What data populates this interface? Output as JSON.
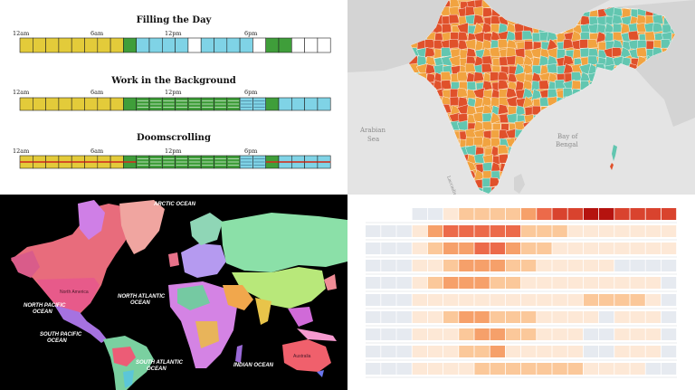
{
  "colors": {
    "yellow": "#e3cb3a",
    "green": "#3f9e3a",
    "cyan": "#7fd3e6",
    "white": "#ffffff",
    "map_orange": "#f1a340",
    "map_red": "#e0512b",
    "map_teal": "#62c6b0",
    "heat_low": "#e6eaf0",
    "heat_high": "#b5130f"
  },
  "chart_data": [
    {
      "type": "table",
      "title": "Filling the Day",
      "time_labels": [
        "12am",
        "6am",
        "12pm",
        "6pm"
      ],
      "cells": [
        "Y",
        "Y",
        "Y",
        "Y",
        "Y",
        "Y",
        "Y",
        "Y",
        "G",
        "C",
        "C",
        "C",
        "C",
        "W",
        "C",
        "C",
        "C",
        "C",
        "W",
        "G",
        "G",
        "W",
        "W",
        "W"
      ]
    },
    {
      "type": "table",
      "title": "Work in the Background",
      "time_labels": [
        "12am",
        "6am",
        "12pm",
        "6pm"
      ],
      "cells": [
        "Y",
        "Y",
        "Y",
        "Y",
        "Y",
        "Y",
        "Y",
        "Y",
        "G",
        "GS",
        "GS",
        "GS",
        "GS",
        "GS",
        "GS",
        "GS",
        "GS",
        "CS",
        "CS",
        "G",
        "C",
        "C",
        "C",
        "C"
      ]
    },
    {
      "type": "table",
      "title": "Doomscrolling",
      "time_labels": [
        "12am",
        "6am",
        "12pm",
        "6pm"
      ],
      "cells": [
        "YR",
        "YR",
        "YR",
        "YR",
        "YR",
        "YR",
        "YR",
        "YR",
        "GR",
        "GS",
        "GS",
        "GS",
        "GS",
        "GS",
        "GS",
        "GS",
        "GS",
        "CS",
        "CS",
        "GR",
        "CR",
        "CR",
        "CR",
        "CR"
      ]
    },
    {
      "type": "heatmap",
      "rows": 10,
      "cols": 20,
      "values": [
        [
          0,
          0,
          0,
          0,
          0,
          1,
          2,
          2,
          2,
          2,
          3,
          4,
          5,
          5,
          6,
          6,
          5,
          5,
          5,
          5
        ],
        [
          0,
          0,
          0,
          1,
          3,
          4,
          4,
          4,
          4,
          4,
          2,
          2,
          2,
          1,
          1,
          1,
          1,
          1,
          1,
          1
        ],
        [
          0,
          0,
          0,
          1,
          2,
          3,
          3,
          4,
          4,
          3,
          2,
          2,
          1,
          1,
          1,
          1,
          1,
          1,
          1,
          1
        ],
        [
          0,
          0,
          0,
          1,
          1,
          2,
          3,
          3,
          3,
          2,
          2,
          1,
          1,
          1,
          1,
          1,
          0,
          0,
          0,
          0
        ],
        [
          0,
          0,
          0,
          1,
          2,
          3,
          3,
          3,
          2,
          2,
          1,
          1,
          1,
          1,
          1,
          1,
          1,
          1,
          1,
          0
        ],
        [
          0,
          0,
          0,
          1,
          1,
          1,
          1,
          1,
          1,
          1,
          1,
          1,
          1,
          1,
          2,
          2,
          2,
          2,
          1,
          0
        ],
        [
          0,
          0,
          0,
          1,
          1,
          2,
          3,
          3,
          2,
          2,
          2,
          1,
          1,
          1,
          1,
          0,
          1,
          1,
          1,
          0
        ],
        [
          0,
          0,
          0,
          1,
          1,
          1,
          2,
          3,
          3,
          2,
          2,
          1,
          1,
          1,
          0,
          0,
          1,
          1,
          1,
          0
        ],
        [
          0,
          0,
          0,
          1,
          1,
          1,
          2,
          2,
          3,
          1,
          1,
          1,
          1,
          1,
          0,
          0,
          1,
          1,
          1,
          0
        ],
        [
          0,
          0,
          0,
          1,
          1,
          1,
          1,
          2,
          2,
          2,
          2,
          2,
          2,
          2,
          1,
          1,
          1,
          1,
          0,
          0
        ]
      ]
    }
  ],
  "india_map": {
    "labels": {
      "arabian_sea_1": "Arabian",
      "arabian_sea_2": "Sea",
      "bay_of_bengal_1": "Bay of",
      "bay_of_bengal_2": "Bengal",
      "laccadive": "Laccadive"
    }
  },
  "world_map": {
    "oceans": {
      "arctic": "ARCTIC OCEAN",
      "north_atlantic_1": "NORTH ATLANTIC",
      "north_atlantic_2": "OCEAN",
      "north_pacific_1": "NORTH PACIFIC",
      "north_pacific_2": "OCEAN",
      "south_pacific_1": "SOUTH PACIFIC",
      "south_pacific_2": "OCEAN",
      "south_atlantic_1": "SOUTH ATLANTIC",
      "south_atlantic_2": "OCEAN",
      "indian": "INDIAN OCEAN"
    },
    "country_labels": {
      "north_america": "North America",
      "australia": "Australia"
    }
  }
}
